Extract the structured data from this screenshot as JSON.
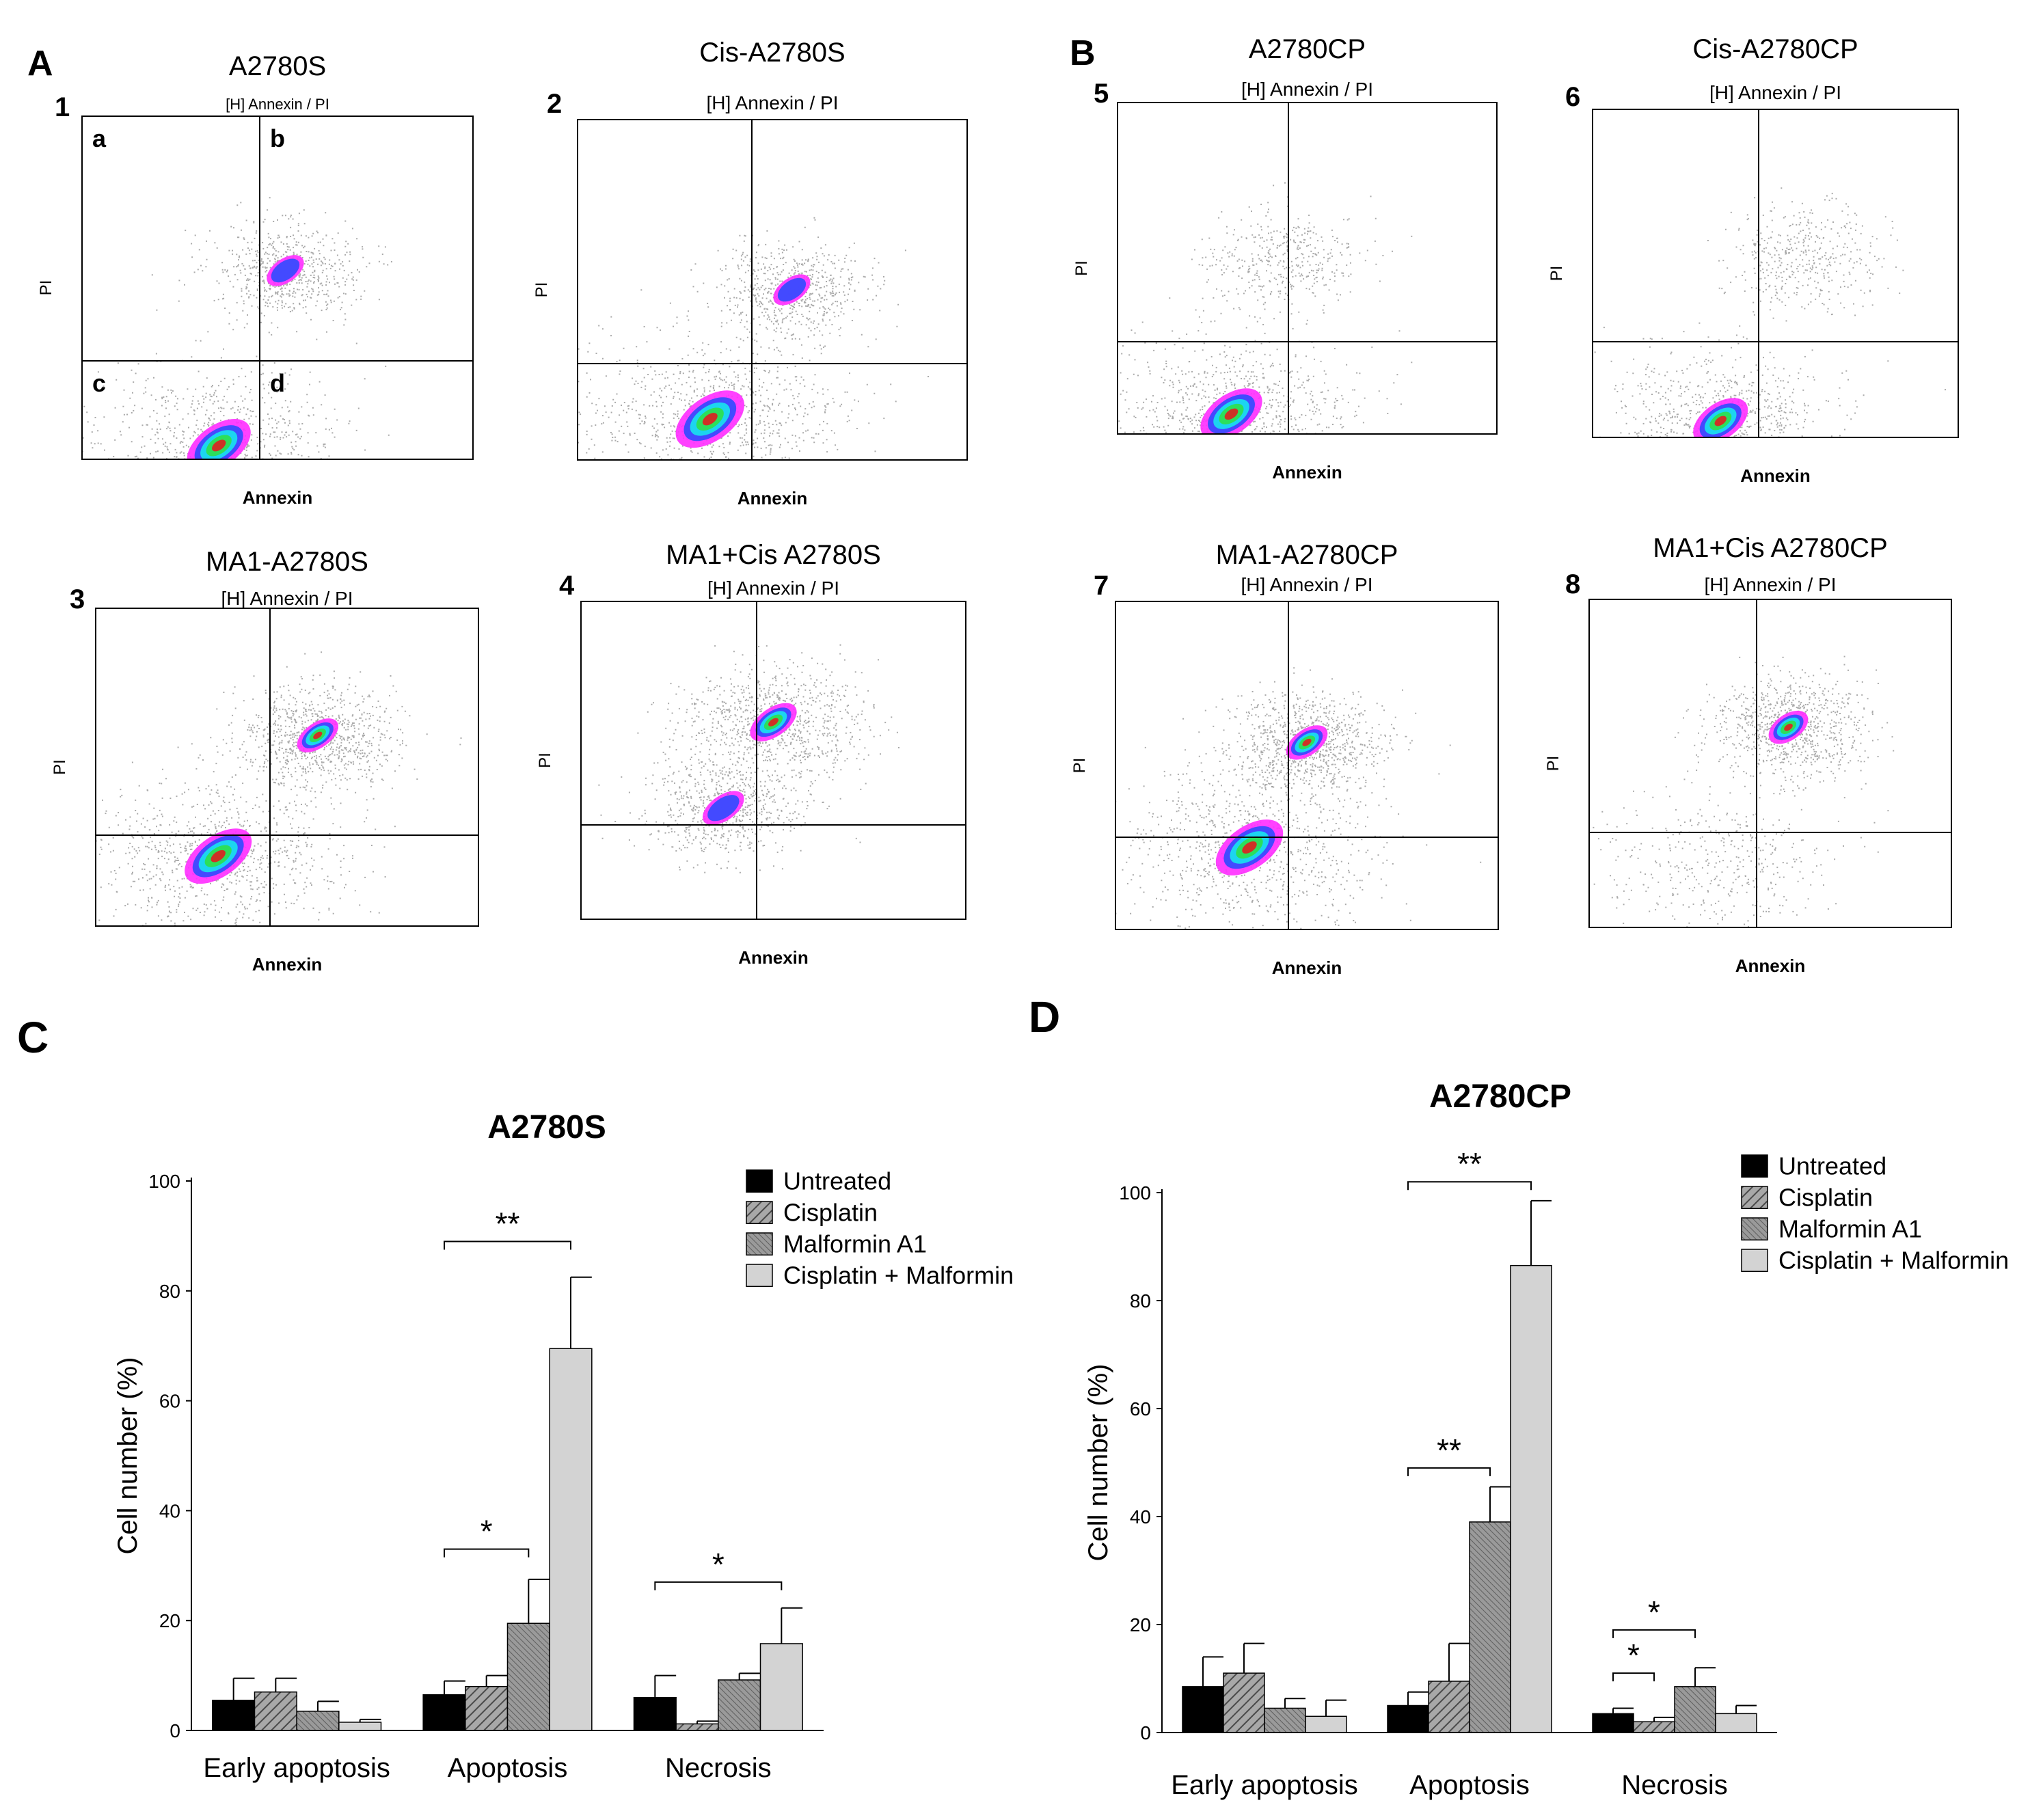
{
  "figure": {
    "panel_labels": {
      "A": "A",
      "B": "B",
      "C": "C",
      "D": "D"
    },
    "flow_plots": [
      {
        "number": "1",
        "title": "A2780S",
        "gate": "[H] Annexin / PI",
        "xlabel": "Annexin",
        "ylabel": "PI",
        "quadrants": [
          "a",
          "b",
          "c",
          "d"
        ],
        "populations": [
          {
            "annexin": 0.35,
            "pi": 0.04,
            "intensity": "high",
            "spread": 0.12
          },
          {
            "annexin": 0.52,
            "pi": 0.55,
            "intensity": "medium",
            "spread": 0.07
          }
        ]
      },
      {
        "number": "2",
        "title": "Cis-A2780S",
        "gate": "[H] Annexin / PI",
        "xlabel": "Annexin",
        "ylabel": "PI",
        "populations": [
          {
            "annexin": 0.34,
            "pi": 0.12,
            "intensity": "high",
            "spread": 0.13
          },
          {
            "annexin": 0.55,
            "pi": 0.5,
            "intensity": "medium",
            "spread": 0.07
          }
        ]
      },
      {
        "number": "3",
        "title": "MA1-A2780S",
        "gate": "[H] Annexin / PI",
        "xlabel": "Annexin",
        "ylabel": "PI",
        "populations": [
          {
            "annexin": 0.32,
            "pi": 0.22,
            "intensity": "high",
            "spread": 0.13
          },
          {
            "annexin": 0.58,
            "pi": 0.6,
            "intensity": "high",
            "spread": 0.08
          }
        ]
      },
      {
        "number": "4",
        "title": "MA1+Cis A2780S",
        "gate": "[H] Annexin / PI",
        "xlabel": "Annexin",
        "ylabel": "PI",
        "populations": [
          {
            "annexin": 0.37,
            "pi": 0.35,
            "intensity": "medium",
            "spread": 0.08
          },
          {
            "annexin": 0.5,
            "pi": 0.62,
            "intensity": "high",
            "spread": 0.09
          }
        ]
      },
      {
        "number": "5",
        "title": "A2780CP",
        "gate": "[H] Annexin / PI",
        "xlabel": "Annexin",
        "ylabel": "PI",
        "populations": [
          {
            "annexin": 0.3,
            "pi": 0.06,
            "intensity": "high",
            "spread": 0.12
          },
          {
            "annexin": 0.43,
            "pi": 0.52,
            "intensity": "low",
            "spread": 0.08
          }
        ]
      },
      {
        "number": "6",
        "title": "Cis-A2780CP",
        "gate": "[H] Annexin / PI",
        "xlabel": "Annexin",
        "ylabel": "PI",
        "populations": [
          {
            "annexin": 0.35,
            "pi": 0.05,
            "intensity": "high",
            "spread": 0.11
          },
          {
            "annexin": 0.58,
            "pi": 0.55,
            "intensity": "low",
            "spread": 0.08
          }
        ]
      },
      {
        "number": "7",
        "title": "MA1-A2780CP",
        "gate": "[H] Annexin / PI",
        "xlabel": "Annexin",
        "ylabel": "PI",
        "populations": [
          {
            "annexin": 0.35,
            "pi": 0.25,
            "intensity": "high",
            "spread": 0.13
          },
          {
            "annexin": 0.5,
            "pi": 0.57,
            "intensity": "high",
            "spread": 0.08
          }
        ]
      },
      {
        "number": "8",
        "title": "MA1+Cis A2780CP",
        "gate": "[H] Annexin / PI",
        "xlabel": "Annexin",
        "ylabel": "PI",
        "populations": [
          {
            "annexin": 0.55,
            "pi": 0.61,
            "intensity": "high",
            "spread": 0.08
          },
          {
            "annexin": 0.35,
            "pi": 0.2,
            "intensity": "low",
            "spread": 0.12
          }
        ]
      }
    ]
  },
  "colors": {
    "untreated": "#000000",
    "cisplatin": "#8c8c8c",
    "malformin": "#878787",
    "combo": "#d3d3d3",
    "density_low": "#9a9a9a",
    "density_magenta": "#ff2cff",
    "density_blue": "#2f4bff",
    "density_cyan": "#18e4ee",
    "density_green": "#2fe04a",
    "density_red": "#e01f1f"
  },
  "chart_data": [
    {
      "type": "bar",
      "panel": "C",
      "title": "A2780S",
      "xlabel": "",
      "ylabel": "Cell number (%)",
      "ylim": [
        0,
        100
      ],
      "yticks": [
        "0",
        "20",
        "40",
        "60",
        "80",
        "100"
      ],
      "grid": false,
      "legend_position": "top-right",
      "categories": [
        "Early apoptosis",
        "Apoptosis",
        "Necrosis"
      ],
      "series": [
        {
          "name": "Untreated",
          "values": [
            5.5,
            6.5,
            6
          ],
          "errors": [
            4,
            2.5,
            4
          ]
        },
        {
          "name": "Cisplatin",
          "values": [
            7,
            8,
            1.2
          ],
          "errors": [
            2.5,
            2,
            0.5
          ]
        },
        {
          "name": "Malformin A1",
          "values": [
            3.5,
            19.5,
            9.2
          ],
          "errors": [
            1.8,
            8,
            1.2
          ]
        },
        {
          "name": "Cisplatin + Malformin",
          "values": [
            1.5,
            69.5,
            15.8
          ],
          "errors": [
            0.5,
            13,
            6.5
          ]
        }
      ],
      "significance": [
        {
          "category": 1,
          "from": 0,
          "to": 3,
          "label": "**",
          "level": 89
        },
        {
          "category": 1,
          "from": 0,
          "to": 2,
          "label": "*",
          "level": 33
        },
        {
          "category": 2,
          "from": 0,
          "to": 3,
          "label": "*",
          "level": 27
        }
      ]
    },
    {
      "type": "bar",
      "panel": "D",
      "title": "A2780CP",
      "xlabel": "",
      "ylabel": "Cell number (%)",
      "ylim": [
        0,
        100
      ],
      "yticks": [
        "0",
        "20",
        "40",
        "60",
        "80",
        "100"
      ],
      "grid": false,
      "legend_position": "top-right",
      "categories": [
        "Early apoptosis",
        "Apoptosis",
        "Necrosis"
      ],
      "series": [
        {
          "name": "Untreated",
          "values": [
            8.5,
            5,
            3.5
          ],
          "errors": [
            5.5,
            2.5,
            1
          ]
        },
        {
          "name": "Cisplatin",
          "values": [
            11,
            9.5,
            2
          ],
          "errors": [
            5.5,
            7,
            0.8
          ]
        },
        {
          "name": "Malformin A1",
          "values": [
            4.5,
            39,
            8.5
          ],
          "errors": [
            1.8,
            6.5,
            3.5
          ]
        },
        {
          "name": "Cisplatin + Malformin",
          "values": [
            3,
            86.5,
            3.5
          ],
          "errors": [
            3,
            12,
            1.5
          ]
        }
      ],
      "significance": [
        {
          "category": 1,
          "from": 0,
          "to": 3,
          "label": "**",
          "level": 102
        },
        {
          "category": 1,
          "from": 0,
          "to": 2,
          "label": "**",
          "level": 49
        },
        {
          "category": 2,
          "from": 0,
          "to": 2,
          "label": "*",
          "level": 19
        },
        {
          "category": 2,
          "from": 0,
          "to": 1,
          "label": "*",
          "level": 11
        }
      ]
    }
  ]
}
